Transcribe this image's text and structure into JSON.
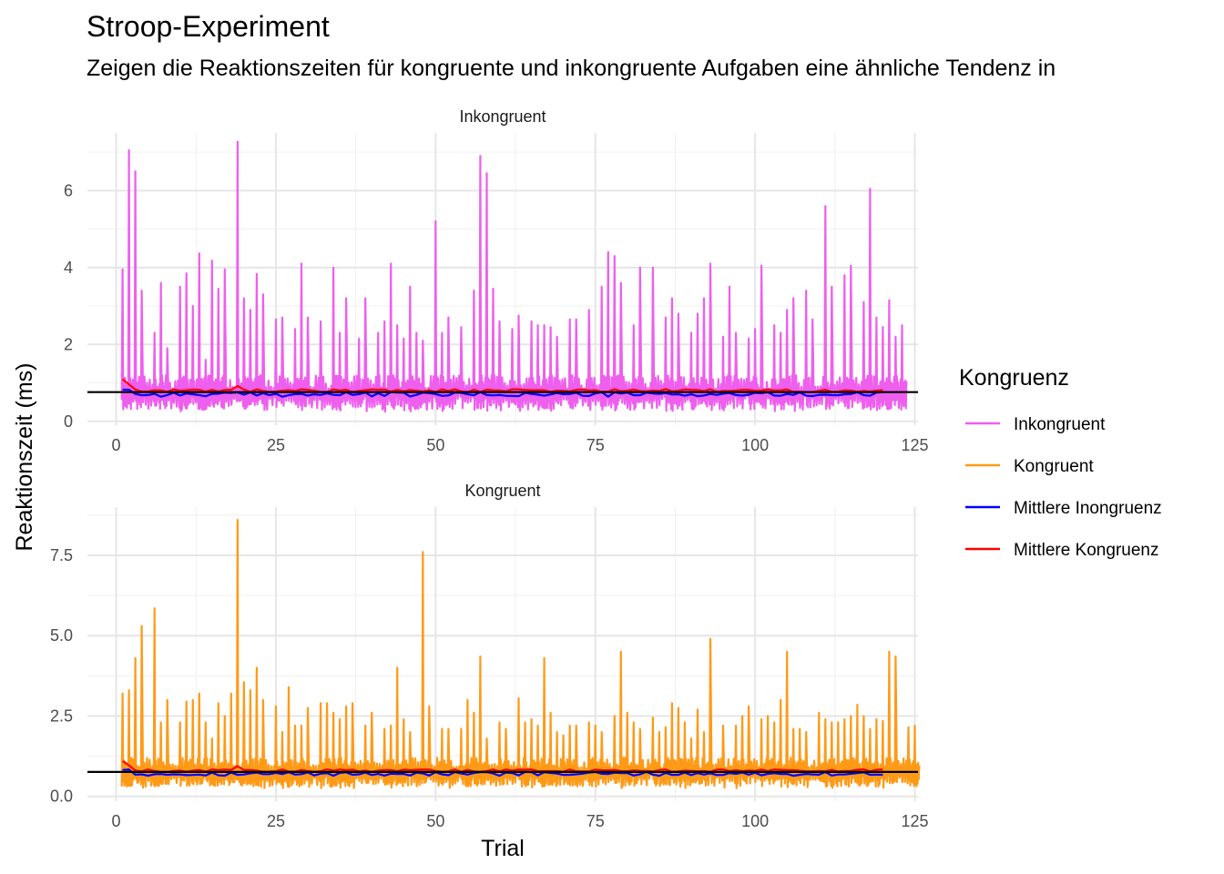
{
  "chart_data": {
    "type": "line",
    "title": "Stroop-Experiment",
    "subtitle": "Zeigen die Reaktionszeiten für kongruente und inkongruente Aufgaben eine ähnliche Tendenz in",
    "xlabel": "Trial",
    "ylabel": "Reaktionszeit (ms)",
    "grid": true,
    "legend": {
      "title": "Kongruenz",
      "position": "right",
      "entries": [
        {
          "label": "Inkongruent",
          "color": "#ee5fee"
        },
        {
          "label": "Kongruent",
          "color": "#ff9a17"
        },
        {
          "label": "Mittlere Inongruenz",
          "color": "#0000ff"
        },
        {
          "label": "Mittlere Kongruenz",
          "color": "#ff0000"
        }
      ]
    },
    "reference_line": {
      "y": 0.76,
      "color": "#000000"
    },
    "panels": [
      {
        "strip": "Inkongruent",
        "series": "Inkongruent",
        "color": "#ee5fee",
        "xlim": [
          -4.5,
          125.5
        ],
        "ylim": [
          -0.1,
          7.5
        ],
        "x_ticks": [
          0,
          25,
          50,
          75,
          100,
          125
        ],
        "y_ticks": [
          0,
          2,
          4,
          6
        ],
        "y_tick_labels": [
          "0",
          "2",
          "4",
          "6"
        ],
        "peaks": [
          [
            1,
            3.95
          ],
          [
            2,
            7.05
          ],
          [
            3,
            6.5
          ],
          [
            4,
            3.4
          ],
          [
            6,
            2.3
          ],
          [
            7,
            3.6
          ],
          [
            8,
            1.9
          ],
          [
            10,
            3.5
          ],
          [
            11,
            3.85
          ],
          [
            12,
            3.0
          ],
          [
            13,
            4.37
          ],
          [
            14,
            1.6
          ],
          [
            15,
            4.18
          ],
          [
            16,
            3.45
          ],
          [
            17,
            3.95
          ],
          [
            19,
            7.27
          ],
          [
            20,
            3.2
          ],
          [
            21,
            2.9
          ],
          [
            22,
            3.83
          ],
          [
            23,
            3.3
          ],
          [
            25,
            2.65
          ],
          [
            26,
            2.7
          ],
          [
            28,
            2.4
          ],
          [
            29,
            4.1
          ],
          [
            30,
            2.7
          ],
          [
            32,
            2.6
          ],
          [
            34,
            4.0
          ],
          [
            35,
            2.3
          ],
          [
            36,
            3.2
          ],
          [
            38,
            2.15
          ],
          [
            39,
            3.2
          ],
          [
            41,
            2.3
          ],
          [
            42,
            2.6
          ],
          [
            43,
            4.1
          ],
          [
            44,
            2.5
          ],
          [
            45,
            2.15
          ],
          [
            46,
            3.5
          ],
          [
            47,
            2.3
          ],
          [
            48,
            2.1
          ],
          [
            50,
            5.2
          ],
          [
            51,
            2.3
          ],
          [
            52,
            2.7
          ],
          [
            54,
            2.45
          ],
          [
            56,
            3.4
          ],
          [
            57,
            6.9
          ],
          [
            58,
            6.45
          ],
          [
            59,
            3.45
          ],
          [
            60,
            2.6
          ],
          [
            62,
            2.4
          ],
          [
            63,
            2.75
          ],
          [
            65,
            2.6
          ],
          [
            66,
            2.5
          ],
          [
            67,
            2.5
          ],
          [
            68,
            2.45
          ],
          [
            69,
            2.2
          ],
          [
            71,
            2.65
          ],
          [
            72,
            2.65
          ],
          [
            74,
            2.9
          ],
          [
            76,
            3.5
          ],
          [
            77,
            4.4
          ],
          [
            78,
            4.3
          ],
          [
            79,
            3.6
          ],
          [
            81,
            2.5
          ],
          [
            82,
            4.0
          ],
          [
            84,
            4.0
          ],
          [
            86,
            2.7
          ],
          [
            87,
            3.2
          ],
          [
            88,
            2.8
          ],
          [
            90,
            2.3
          ],
          [
            91,
            2.8
          ],
          [
            92,
            3.2
          ],
          [
            93,
            4.1
          ],
          [
            95,
            2.2
          ],
          [
            96,
            3.5
          ],
          [
            97,
            2.3
          ],
          [
            99,
            2.15
          ],
          [
            100,
            2.4
          ],
          [
            101,
            4.05
          ],
          [
            103,
            2.5
          ],
          [
            104,
            2.3
          ],
          [
            105,
            2.9
          ],
          [
            106,
            3.2
          ],
          [
            108,
            3.4
          ],
          [
            109,
            2.65
          ],
          [
            111,
            5.6
          ],
          [
            112,
            3.5
          ],
          [
            114,
            3.8
          ],
          [
            115,
            4.05
          ],
          [
            117,
            3.1
          ],
          [
            118,
            6.05
          ],
          [
            119,
            2.7
          ],
          [
            120,
            2.45
          ],
          [
            121,
            3.15
          ],
          [
            122,
            2.2
          ],
          [
            123,
            2.5
          ]
        ],
        "mean_incongruent": 0.7,
        "mean_congruent": 0.8
      },
      {
        "strip": "Kongruent",
        "series": "Kongruent",
        "color": "#ff9a17",
        "xlim": [
          -4.5,
          125.5
        ],
        "ylim": [
          -0.15,
          9.0
        ],
        "x_ticks": [
          0,
          25,
          50,
          75,
          100,
          125
        ],
        "y_ticks": [
          0,
          2.5,
          5,
          7.5
        ],
        "y_tick_labels": [
          "0.0",
          "2.5",
          "5.0",
          "7.5"
        ],
        "peaks": [
          [
            1,
            3.2
          ],
          [
            2,
            3.3
          ],
          [
            3,
            4.3
          ],
          [
            4,
            5.3
          ],
          [
            6,
            5.85
          ],
          [
            7,
            2.3
          ],
          [
            8,
            3.0
          ],
          [
            10,
            2.3
          ],
          [
            11,
            2.95
          ],
          [
            12,
            3.0
          ],
          [
            13,
            3.2
          ],
          [
            14,
            2.3
          ],
          [
            15,
            1.8
          ],
          [
            16,
            2.9
          ],
          [
            17,
            2.5
          ],
          [
            18,
            3.2
          ],
          [
            19,
            8.6
          ],
          [
            20,
            3.55
          ],
          [
            21,
            3.3
          ],
          [
            22,
            4.0
          ],
          [
            23,
            3.0
          ],
          [
            25,
            2.8
          ],
          [
            26,
            2.0
          ],
          [
            27,
            3.4
          ],
          [
            28,
            2.2
          ],
          [
            29,
            2.2
          ],
          [
            30,
            2.75
          ],
          [
            32,
            2.9
          ],
          [
            33,
            2.9
          ],
          [
            34,
            2.6
          ],
          [
            35,
            2.4
          ],
          [
            36,
            2.8
          ],
          [
            37,
            2.9
          ],
          [
            39,
            2.2
          ],
          [
            40,
            2.6
          ],
          [
            42,
            2.1
          ],
          [
            43,
            2.2
          ],
          [
            44,
            4.0
          ],
          [
            45,
            2.4
          ],
          [
            46,
            2.0
          ],
          [
            48,
            7.6
          ],
          [
            49,
            2.8
          ],
          [
            51,
            2.1
          ],
          [
            52,
            2.1
          ],
          [
            54,
            2.1
          ],
          [
            55,
            3.0
          ],
          [
            56,
            2.6
          ],
          [
            57,
            4.35
          ],
          [
            58,
            1.8
          ],
          [
            60,
            2.3
          ],
          [
            61,
            2.1
          ],
          [
            63,
            3.05
          ],
          [
            64,
            2.3
          ],
          [
            65,
            2.4
          ],
          [
            66,
            2.2
          ],
          [
            67,
            4.3
          ],
          [
            68,
            2.6
          ],
          [
            69,
            2.0
          ],
          [
            70,
            1.9
          ],
          [
            71,
            2.2
          ],
          [
            72,
            2.2
          ],
          [
            74,
            2.3
          ],
          [
            75,
            2.2
          ],
          [
            76,
            2.0
          ],
          [
            78,
            2.5
          ],
          [
            79,
            4.5
          ],
          [
            80,
            2.6
          ],
          [
            81,
            2.3
          ],
          [
            82,
            2.1
          ],
          [
            84,
            2.45
          ],
          [
            85,
            2.0
          ],
          [
            86,
            2.15
          ],
          [
            87,
            2.9
          ],
          [
            88,
            2.75
          ],
          [
            89,
            2.3
          ],
          [
            90,
            1.8
          ],
          [
            91,
            2.7
          ],
          [
            92,
            2.0
          ],
          [
            93,
            4.9
          ],
          [
            95,
            2.2
          ],
          [
            97,
            2.2
          ],
          [
            98,
            2.5
          ],
          [
            99,
            2.8
          ],
          [
            101,
            2.4
          ],
          [
            102,
            2.5
          ],
          [
            103,
            2.3
          ],
          [
            104,
            3.0
          ],
          [
            105,
            4.5
          ],
          [
            106,
            2.1
          ],
          [
            107,
            2.1
          ],
          [
            108,
            2.0
          ],
          [
            110,
            2.6
          ],
          [
            111,
            2.4
          ],
          [
            112,
            2.3
          ],
          [
            113,
            2.3
          ],
          [
            114,
            2.4
          ],
          [
            115,
            2.5
          ],
          [
            116,
            2.85
          ],
          [
            117,
            2.5
          ],
          [
            118,
            2.1
          ],
          [
            119,
            2.4
          ],
          [
            120,
            2.35
          ],
          [
            121,
            4.5
          ],
          [
            122,
            4.35
          ],
          [
            124,
            2.15
          ],
          [
            125,
            2.2
          ]
        ],
        "mean_incongruent": 0.7,
        "mean_congruent": 0.8
      }
    ]
  }
}
